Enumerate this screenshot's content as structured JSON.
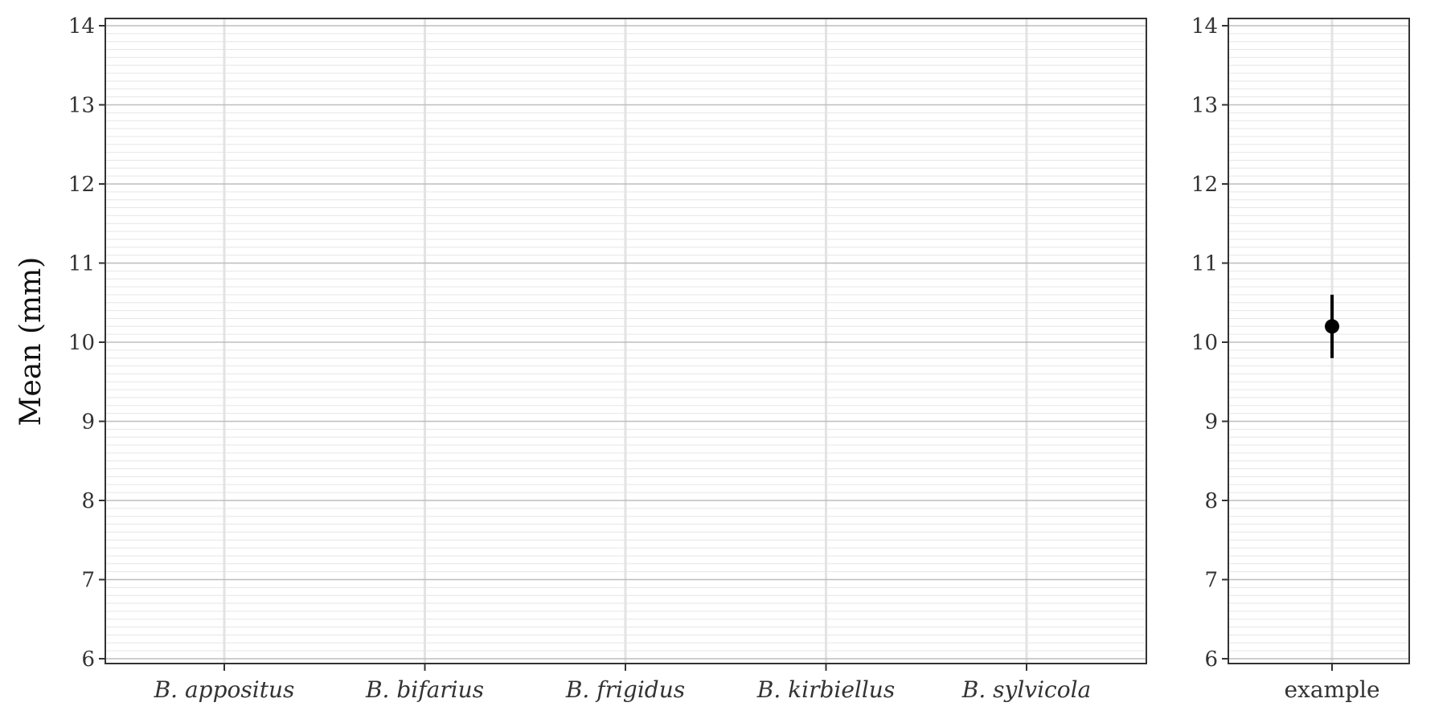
{
  "chart_data": [
    {
      "type": "scatter",
      "title": "",
      "xlabel": "",
      "ylabel": "Mean (mm)",
      "ylim": [
        6,
        14
      ],
      "yticks": [
        6,
        7,
        8,
        9,
        10,
        11,
        12,
        13,
        14
      ],
      "grid": true,
      "categories": [
        "B. appositus",
        "B. bifarius",
        "B. frigidus",
        "B. kirbiellus",
        "B. sylvicola"
      ],
      "categories_italic": true,
      "points": []
    },
    {
      "type": "scatter",
      "title": "",
      "xlabel": "",
      "ylabel": "",
      "ylim": [
        6,
        14
      ],
      "yticks": [
        6,
        7,
        8,
        9,
        10,
        11,
        12,
        13,
        14
      ],
      "grid": true,
      "categories": [
        "example"
      ],
      "categories_italic": false,
      "points": [
        {
          "category": "example",
          "mean": 10.2,
          "lower": 9.8,
          "upper": 10.6
        }
      ]
    }
  ],
  "colors": {
    "point": "#000000",
    "panel_border": "#333333",
    "grid_major": "#bdbdbd",
    "grid_minor": "#e6e6e6"
  }
}
